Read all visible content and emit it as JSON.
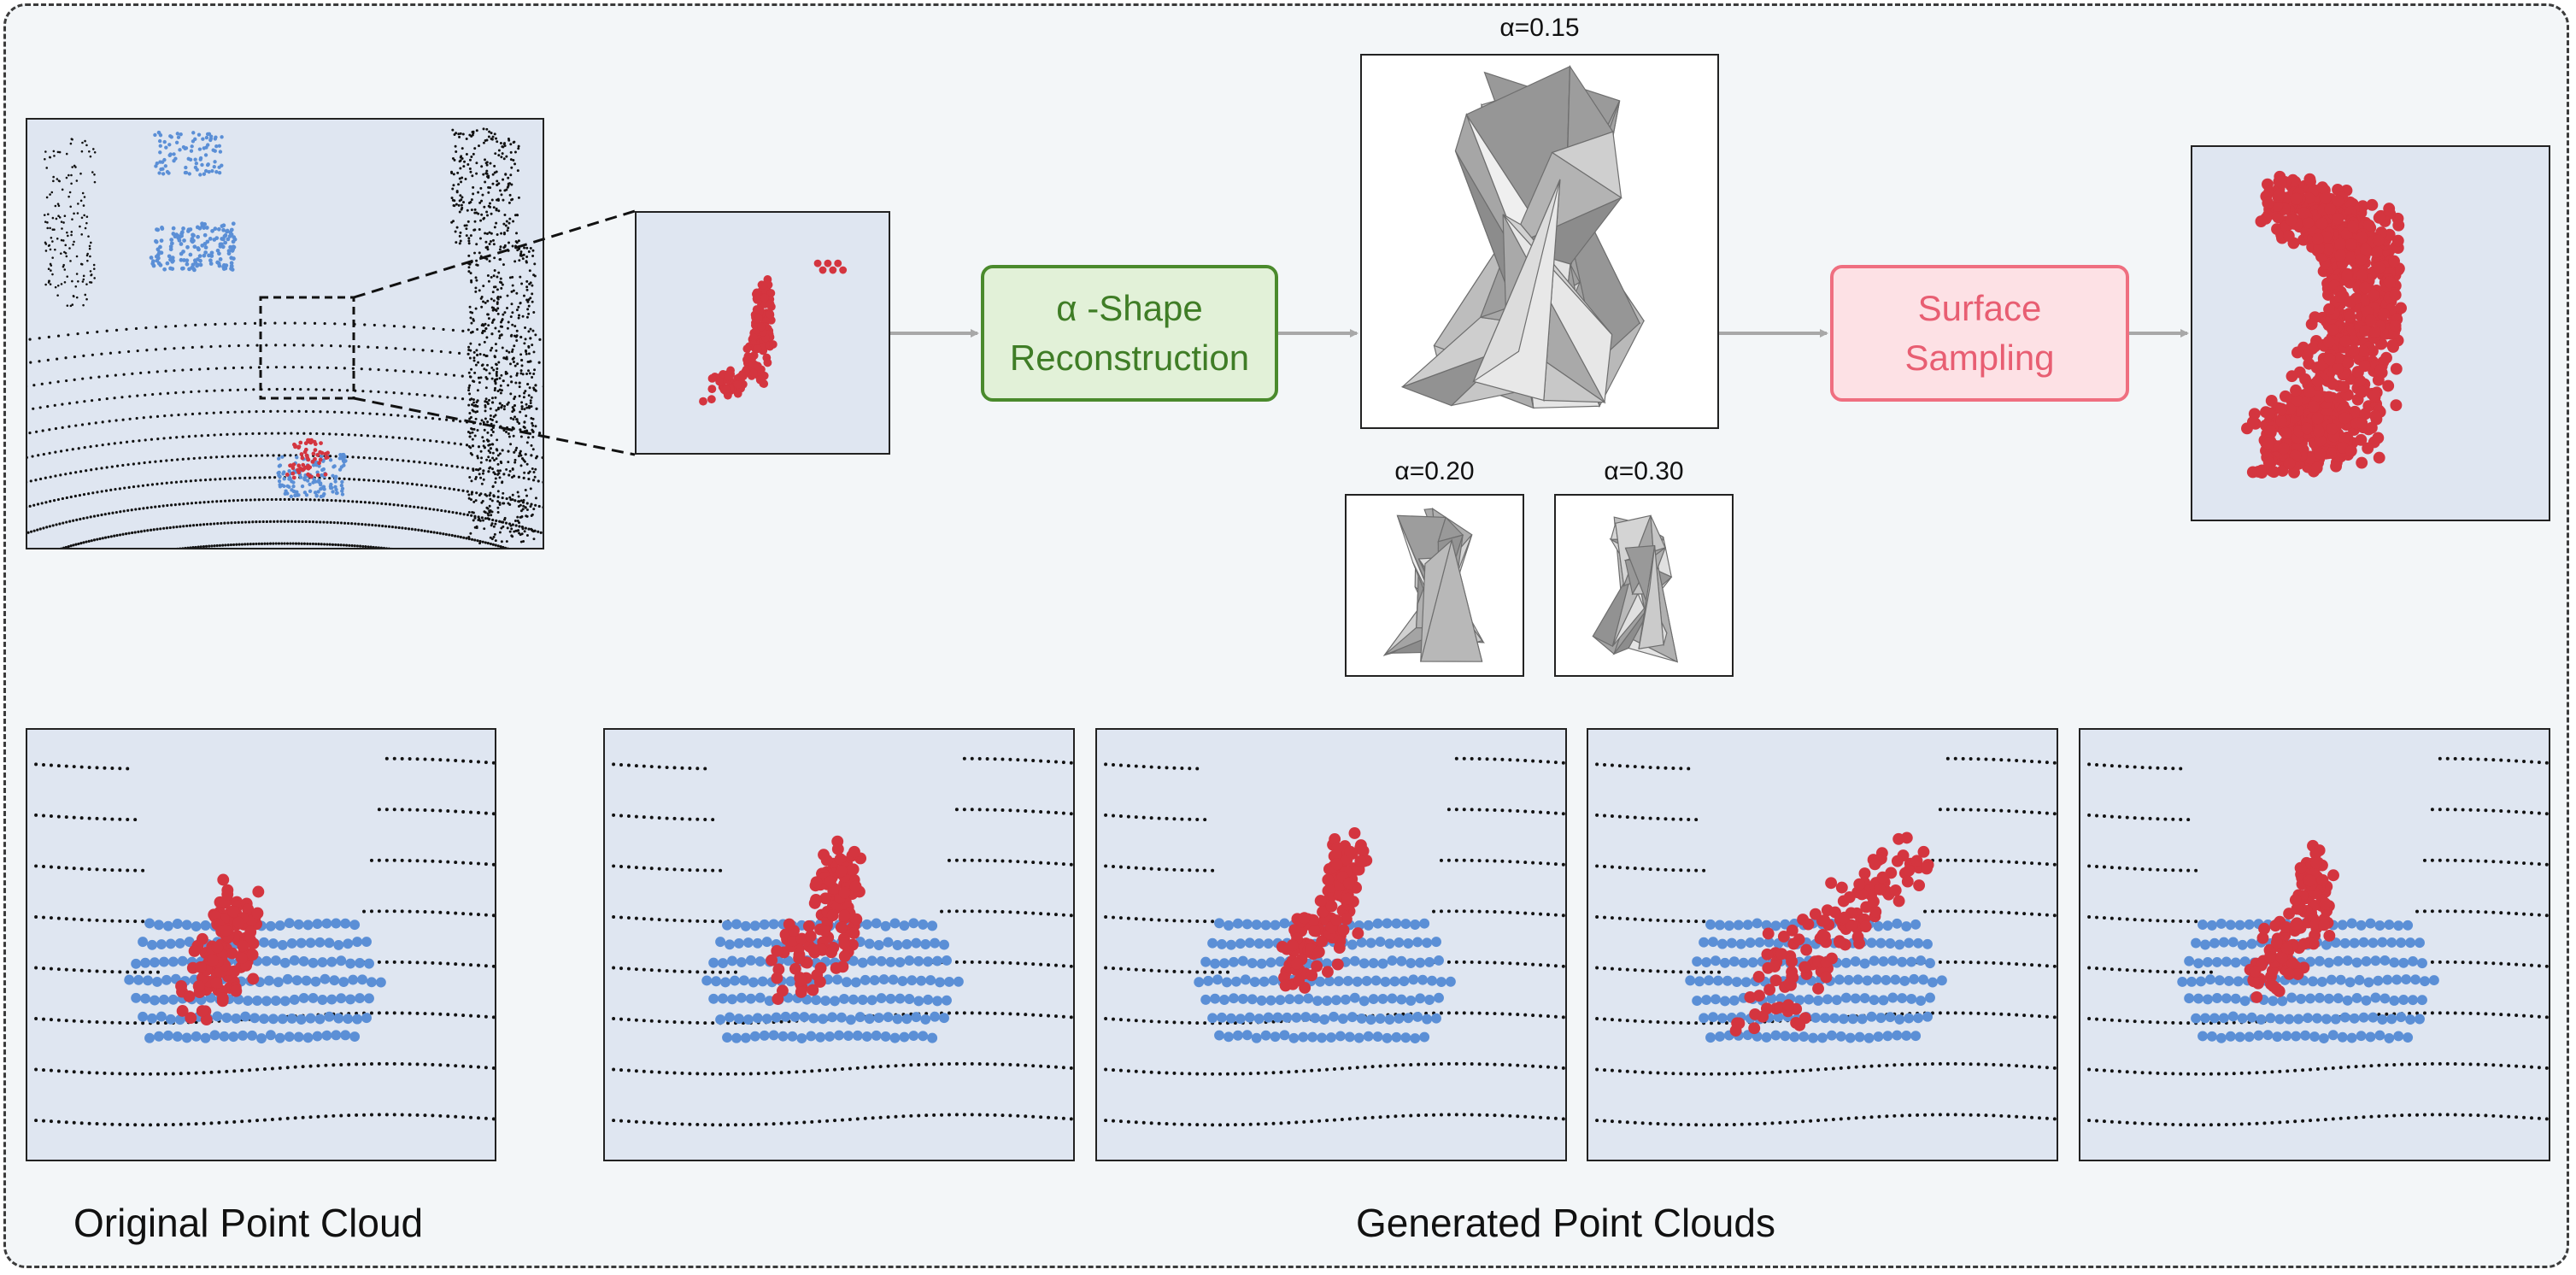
{
  "steps": {
    "reconstruction": {
      "line1": "α -Shape",
      "line2": "Reconstruction"
    },
    "sampling": {
      "line1": "Surface",
      "line2": "Sampling"
    }
  },
  "alpha_labels": {
    "main": "α=0.15",
    "small_a": "α=0.20",
    "small_b": "α=0.30"
  },
  "captions": {
    "original": "Original Point Cloud",
    "generated": "Generated Point Clouds"
  },
  "colors": {
    "object_points": "#d4353f",
    "ground_points": "#5b8fd6",
    "lidar_rings": "#111111",
    "panel_bg": "#dfe6f1",
    "frame_bg": "#f3f6f8"
  }
}
